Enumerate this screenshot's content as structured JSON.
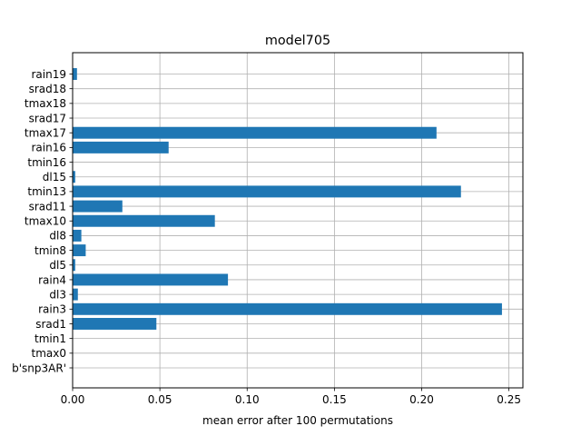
{
  "chart_data": {
    "type": "bar",
    "orientation": "horizontal",
    "title": "model705",
    "xlabel": "mean error after 100 permutations",
    "ylabel": "",
    "xlim": [
      0,
      0.258
    ],
    "xticks": [
      0.0,
      0.05,
      0.1,
      0.15,
      0.2,
      0.25
    ],
    "xtick_labels": [
      "0.00",
      "0.05",
      "0.10",
      "0.15",
      "0.20",
      "0.25"
    ],
    "grid": true,
    "bar_color": "#1f77b4",
    "categories": [
      "b'snp3AR'",
      "tmax0",
      "tmin1",
      "srad1",
      "rain3",
      "dl3",
      "rain4",
      "dl5",
      "tmin8",
      "dl8",
      "tmax10",
      "srad11",
      "tmin13",
      "dl15",
      "tmin16",
      "rain16",
      "tmax17",
      "srad17",
      "tmax18",
      "srad18",
      "rain19"
    ],
    "values": [
      0.0,
      0.0,
      0.0,
      0.048,
      0.246,
      0.003,
      0.089,
      0.0015,
      0.0075,
      0.005,
      0.0815,
      0.0285,
      0.2225,
      0.0015,
      0.0,
      0.055,
      0.2085,
      0.0,
      0.0,
      0.0,
      0.0025
    ]
  }
}
